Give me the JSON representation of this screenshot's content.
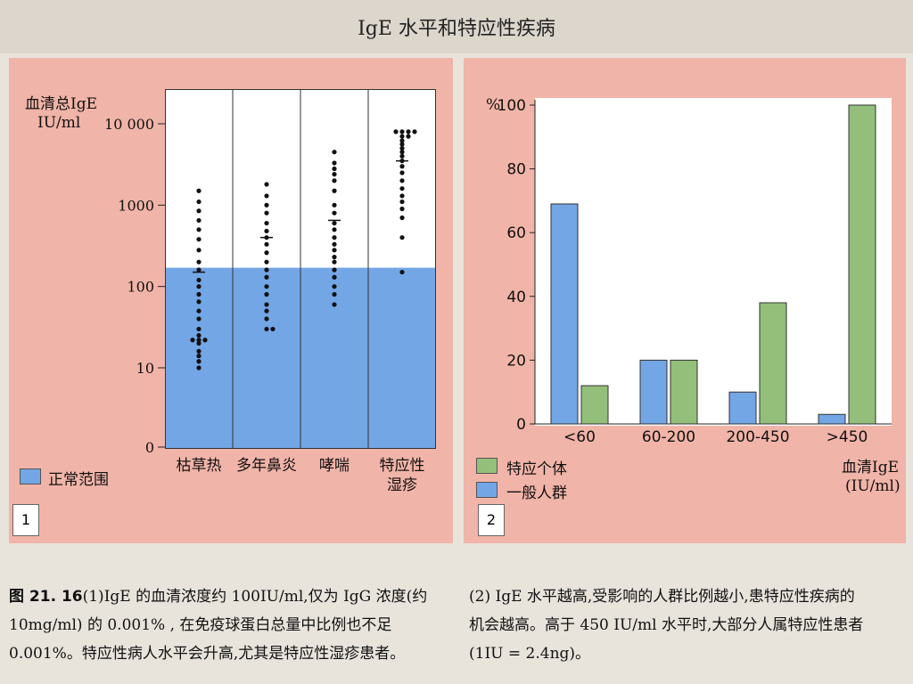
{
  "title": "IgE 水平和特应性疾病",
  "panel1": {
    "ylabel_line1": "血清总IgE",
    "ylabel_line2": "IU/ml",
    "legend": "正常范围",
    "number": "1"
  },
  "panel2": {
    "ylabel": "%",
    "legend_atopic": "特应个体",
    "legend_general": "一般人群",
    "xlabel_line1": "血清IgE",
    "xlabel_line2": "(IU/ml)",
    "number": "2"
  },
  "chart_data": [
    {
      "type": "scatter",
      "scale": "log",
      "yticks": [
        "0",
        "10",
        "100",
        "1000",
        "10 000"
      ],
      "ylim": [
        0,
        10000
      ],
      "normal_range_upper": 170,
      "categories": [
        "枯草热",
        "多年鼻炎",
        "哮喘",
        "特应性湿疹"
      ],
      "category_lines": [
        [
          "枯草热"
        ],
        [
          "多年鼻炎"
        ],
        [
          "哮喘"
        ],
        [
          "特应性",
          "湿疹"
        ]
      ],
      "points": [
        [
          1500,
          1100,
          850,
          650,
          500,
          380,
          280,
          200,
          160,
          120,
          100,
          80,
          65,
          50,
          40,
          30,
          25,
          22,
          22,
          22,
          20,
          16,
          14,
          12,
          10
        ],
        [
          1800,
          1300,
          1000,
          800,
          600,
          480,
          400,
          330,
          260,
          200,
          160,
          130,
          100,
          80,
          60,
          50,
          40,
          30,
          30
        ],
        [
          4500,
          3300,
          2800,
          2400,
          2000,
          1500,
          1000,
          800,
          600,
          500,
          400,
          330,
          280,
          230,
          200,
          160,
          130,
          100,
          80,
          60
        ],
        [
          8000,
          8000,
          8000,
          8000,
          7000,
          7000,
          6200,
          5600,
          5000,
          4500,
          4000,
          3500,
          3000,
          2500,
          2000,
          1600,
          1300,
          1100,
          900,
          700,
          400,
          150
        ]
      ],
      "means": [
        150,
        400,
        650,
        3500
      ]
    },
    {
      "type": "bar",
      "categories": [
        "<60",
        "60-200",
        "200-450",
        ">450"
      ],
      "series": [
        {
          "name": "一般人群",
          "color": "#73a6e4",
          "values": [
            69,
            20,
            10,
            3
          ]
        },
        {
          "name": "特应个体",
          "color": "#93bf7a",
          "values": [
            12,
            20,
            38,
            100
          ]
        }
      ],
      "ylim": [
        0,
        100
      ],
      "yticks": [
        "0",
        "20",
        "40",
        "60",
        "80",
        "100"
      ]
    }
  ],
  "caption": {
    "fig_num": "图 21. 16",
    "left_l1": "(1)IgE 的血清浓度约 100IU/ml,仅为 IgG 浓度(约",
    "left_l2": "10mg/ml) 的 0.001% , 在免疫球蛋白总量中比例也不足",
    "left_l3": "0.001%。特应性病人水平会升高,尤其是特应性湿疹患者。",
    "right_l1": "(2) IgE 水平越高,受影响的人群比例越小,患特应性疾病的",
    "right_l2": "机会越高。高于 450 IU/ml 水平时,大部分人属特应性患者",
    "right_l3": "(1IU = 2.4ng)。"
  }
}
